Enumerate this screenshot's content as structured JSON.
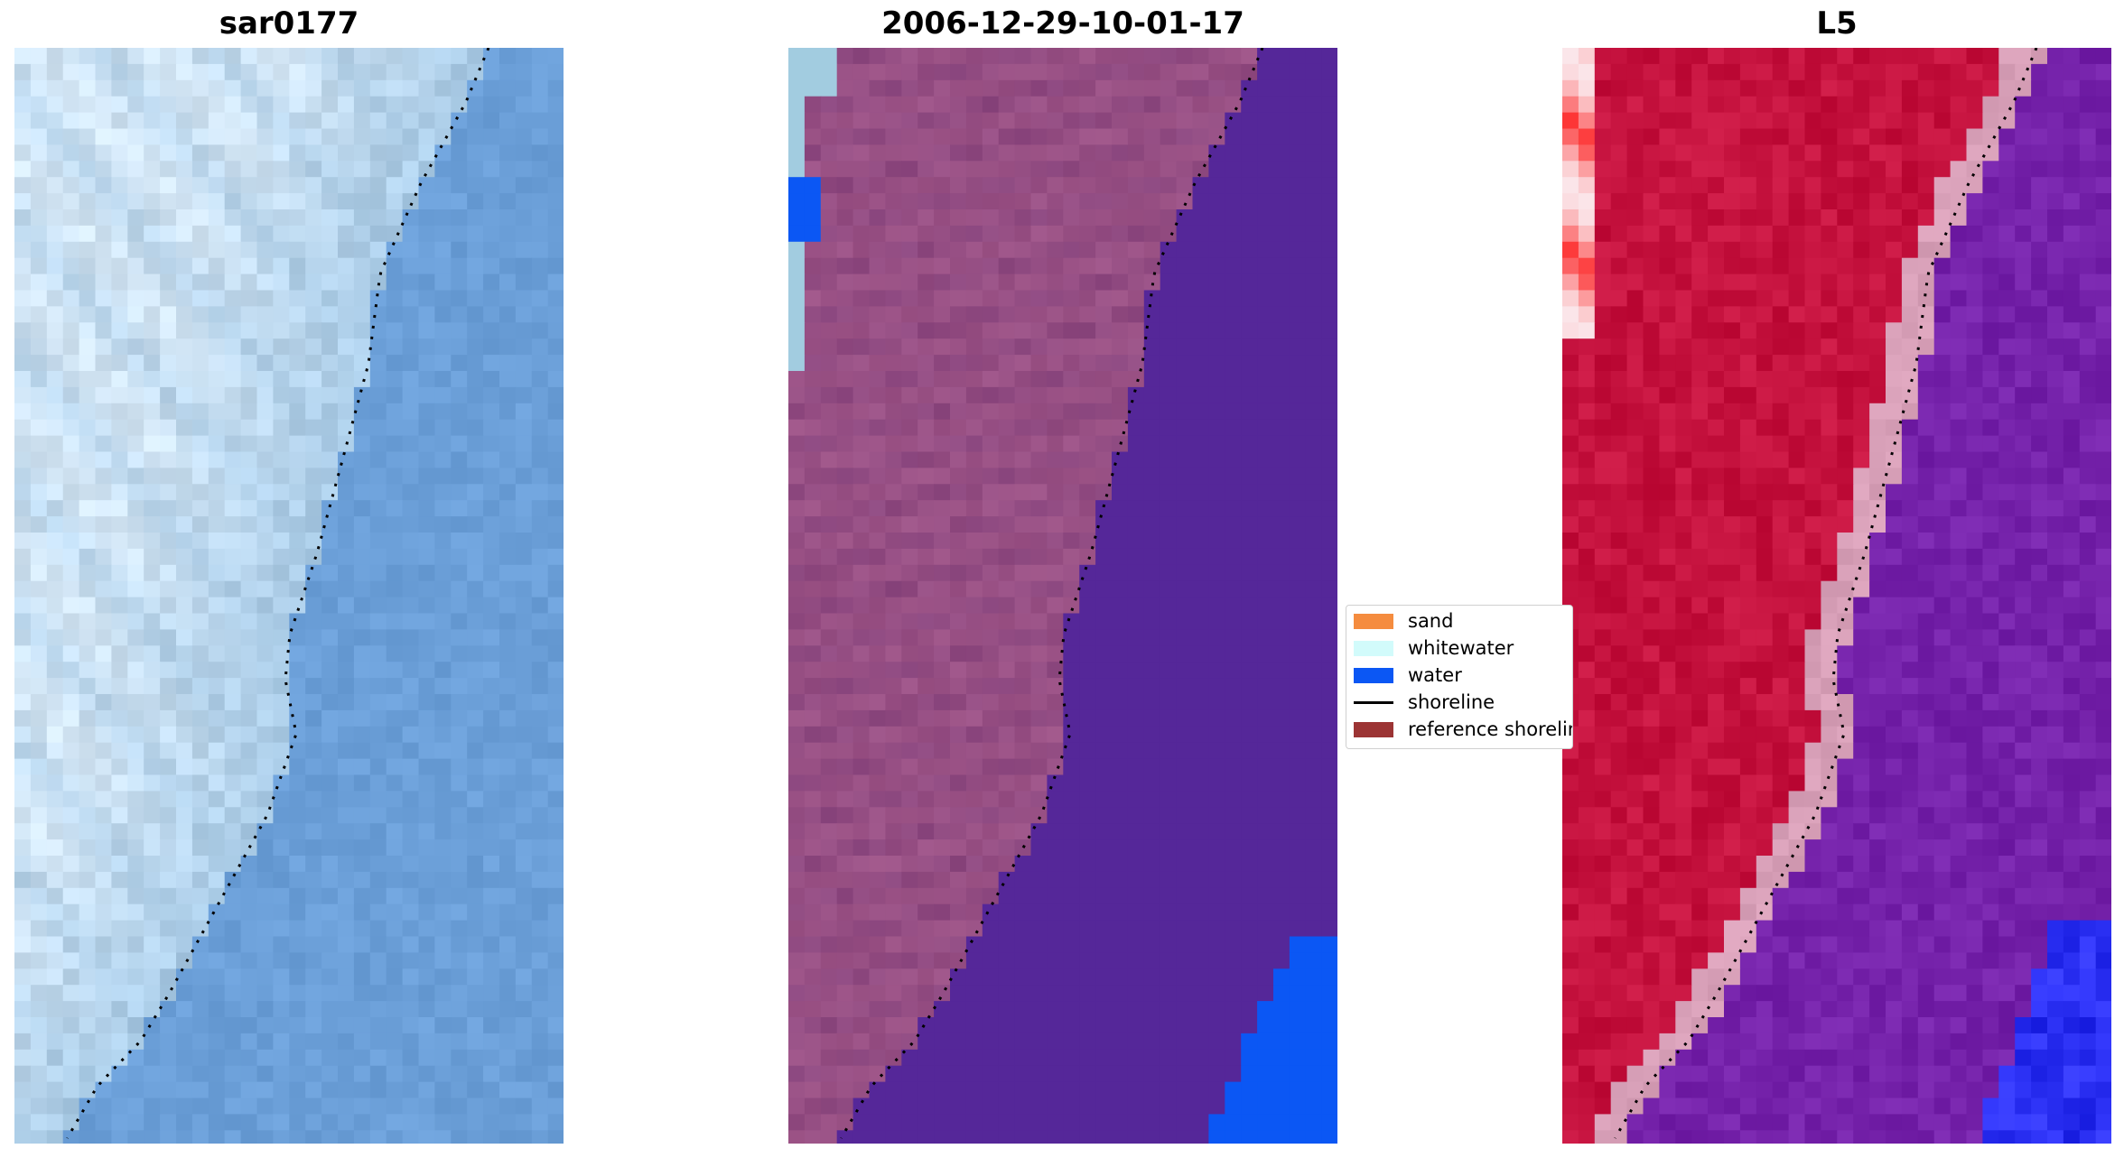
{
  "panels": [
    {
      "title": "sar0177",
      "style": "rgb",
      "colors": {
        "land": "#a9cbe6",
        "water": "#6b9fd8",
        "foam": "#dfeefa"
      }
    },
    {
      "title": "2006-12-29-10-01-17",
      "style": "classified",
      "colors": {
        "land": "#8b477f",
        "water": "#552799",
        "whitewater": "#a2cce0",
        "waterclass": "#0b57f4"
      }
    },
    {
      "title": "L5",
      "style": "index",
      "colors": {
        "land": "#c5123e",
        "water": "#7522aa",
        "white": "#fbe6ea",
        "red": "#fd2a2a",
        "blue": "#2a2ff2",
        "border": "#d8a0b8"
      }
    }
  ],
  "legend": {
    "items": [
      {
        "label": "sand",
        "color": "#f58c3f",
        "kind": "patch"
      },
      {
        "label": "whitewater",
        "color": "#d2fbfb",
        "kind": "patch"
      },
      {
        "label": "water",
        "color": "#0b57f4",
        "kind": "patch"
      },
      {
        "label": "shoreline",
        "color": "#000000",
        "kind": "line"
      },
      {
        "label": "reference shoreline",
        "color": "#9c3434",
        "kind": "patch"
      }
    ]
  },
  "shoreline": {
    "color": "#000000",
    "style": "dotted"
  }
}
